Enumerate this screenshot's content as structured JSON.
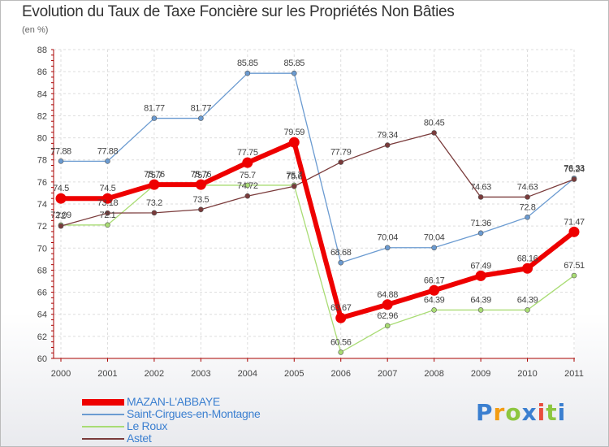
{
  "header": {
    "title": "Evolution du Taux de Taxe Foncière sur les Propriétés Non Bâties",
    "unit": "(en %)"
  },
  "logo": {
    "text": "Proxiti",
    "colors": [
      "#3b7fd0",
      "#f39c12",
      "#8dc63f",
      "#3b7fd0",
      "#e84c3d",
      "#8dc63f",
      "#3b7fd0"
    ]
  },
  "chart_data": {
    "type": "line",
    "title": "Evolution du Taux de Taxe Foncière sur les Propriétés Non Bâties",
    "ylabel": "(en %)",
    "xlabel": "",
    "ylim": [
      60,
      88
    ],
    "yticks": [
      60,
      62,
      64,
      66,
      68,
      70,
      72,
      74,
      76,
      78,
      80,
      82,
      84,
      86,
      88
    ],
    "grid": true,
    "legend": "bottom-left",
    "categories": [
      "2000",
      "2001",
      "2002",
      "2003",
      "2004",
      "2005",
      "2006",
      "2007",
      "2008",
      "2009",
      "2010",
      "2011"
    ],
    "series": [
      {
        "name": "Saint-Cirgues-en-Montagne",
        "color": "#6b9bd1",
        "values": [
          77.88,
          77.88,
          81.77,
          81.77,
          85.85,
          85.85,
          68.68,
          70.04,
          70.04,
          71.36,
          72.8,
          76.33
        ],
        "labels": [
          "77.88",
          "77.88",
          "81.77",
          "81.77",
          "85.85",
          "85.85",
          "68.68",
          "70.04",
          "70.04",
          "71.36",
          "72.8",
          "76.33"
        ]
      },
      {
        "name": "Le Roux",
        "color": "#a9dc74",
        "values": [
          72.09,
          72.1,
          75.7,
          75.7,
          75.7,
          75.7,
          60.56,
          62.96,
          64.39,
          64.39,
          64.39,
          67.51
        ],
        "labels": [
          "72.09",
          "72.1",
          "75.7",
          "75.7",
          "75.7",
          "75.7",
          "60.56",
          "62.96",
          "64.39",
          "64.39",
          "64.39",
          "67.51"
        ]
      },
      {
        "name": "Astet",
        "color": "#7a3b3b",
        "values": [
          72.0,
          73.18,
          73.2,
          73.5,
          74.72,
          75.6,
          77.79,
          79.34,
          80.45,
          74.63,
          74.63,
          76.24
        ],
        "labels": [
          "72",
          "73.18",
          "73.2",
          "73.5",
          "74.72",
          "75.6",
          "77.79",
          "79.34",
          "80.45",
          "74.63",
          "74.63",
          "76.24"
        ]
      },
      {
        "name": "MAZAN-L'ABBAYE",
        "color": "#ee0000",
        "highlight": true,
        "values": [
          74.5,
          74.5,
          75.76,
          75.76,
          77.75,
          79.59,
          63.67,
          64.88,
          66.17,
          67.49,
          68.16,
          71.47
        ],
        "labels": [
          "74.5",
          "74.5",
          "75.76",
          "75.76",
          "77.75",
          "79.59",
          "63.67",
          "64.88",
          "66.17",
          "67.49",
          "68.16",
          "71.47"
        ]
      }
    ]
  }
}
